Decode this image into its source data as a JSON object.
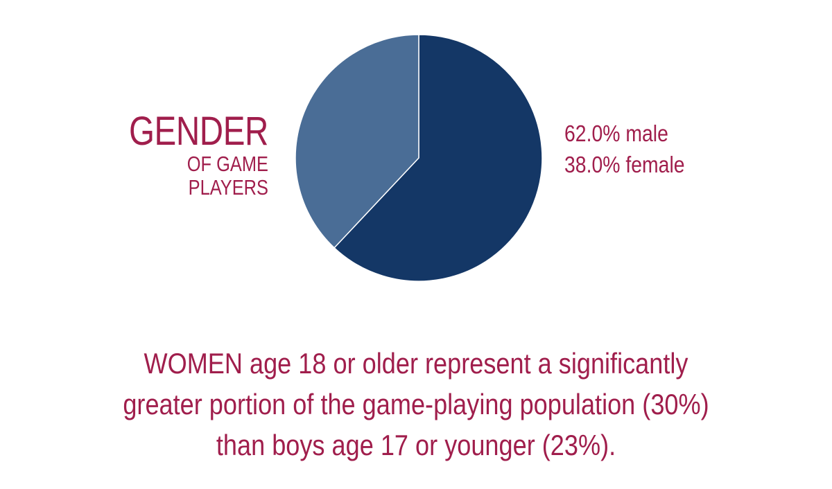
{
  "chart_data": {
    "type": "pie",
    "title": "GENDER",
    "subtitle": "OF GAME PLAYERS",
    "slices": [
      {
        "label": "male",
        "value": 62.0,
        "color": "#143766"
      },
      {
        "label": "female",
        "value": 38.0,
        "color": "#4a6d96"
      }
    ],
    "legend_entries": [
      "62.0% male",
      "38.0% female"
    ],
    "annotation": [
      "WOMEN age 18 or older represent a significantly",
      "greater portion of the game-playing population (30%)",
      "than boys age 17 or younger (23%)."
    ]
  },
  "colors": {
    "text": "#a01e4c",
    "slice_separator": "#ffffff",
    "background": "#ffffff"
  }
}
